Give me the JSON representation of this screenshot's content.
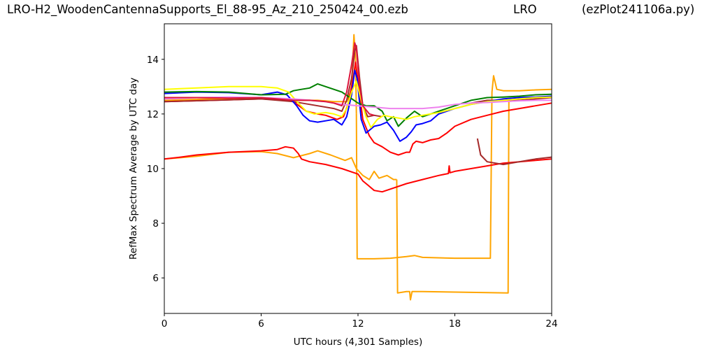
{
  "header": {
    "filename": "LRO-H2_WoodenCantennaSupports_El_88-95_Az_210_250424_00.ezb",
    "station": "LRO",
    "script": "(ezPlot241106a.py)"
  },
  "chart_data": {
    "type": "line",
    "title": "",
    "xlabel": "UTC hours  (4,301 Samples)",
    "ylabel": "RefMax Spectrum Average by UTC day",
    "xlim": [
      0,
      24
    ],
    "ylim": [
      4.7,
      15.3
    ],
    "xticks": [
      0,
      6,
      12,
      18,
      24
    ],
    "xtick_labels": [
      "0",
      "6",
      "12",
      "18",
      "24"
    ],
    "yticks": [
      6,
      8,
      10,
      12,
      14
    ],
    "ytick_labels": [
      "6",
      "8",
      "10",
      "12",
      "14"
    ],
    "grid": false,
    "legend": "none",
    "series": [
      {
        "color": "#ffa500",
        "points": [
          [
            0,
            10.35
          ],
          [
            2,
            10.45
          ],
          [
            4,
            10.6
          ],
          [
            6,
            10.62
          ],
          [
            7,
            10.55
          ],
          [
            8,
            10.4
          ],
          [
            9,
            10.55
          ],
          [
            9.5,
            10.65
          ],
          [
            10.3,
            10.5
          ],
          [
            11.2,
            10.3
          ],
          [
            11.6,
            10.4
          ],
          [
            11.9,
            10.0
          ],
          [
            12.3,
            9.75
          ],
          [
            12.7,
            9.6
          ],
          [
            13.0,
            9.9
          ],
          [
            13.3,
            9.65
          ],
          [
            13.8,
            9.75
          ],
          [
            14.2,
            9.6
          ],
          [
            14.4,
            9.6
          ]
        ]
      },
      {
        "color": "#ffa500",
        "points": [
          [
            0,
            12.5
          ],
          [
            3,
            12.55
          ],
          [
            6,
            12.55
          ],
          [
            8,
            12.5
          ],
          [
            9.5,
            12.5
          ],
          [
            10.5,
            12.45
          ],
          [
            11.3,
            12.45
          ],
          [
            11.6,
            12.9
          ],
          [
            11.75,
            14.9
          ],
          [
            11.85,
            14.0
          ],
          [
            11.9,
            12.0
          ]
        ]
      },
      {
        "color": "#ffa500",
        "points": [
          [
            11.9,
            12.0
          ],
          [
            11.95,
            6.7
          ],
          [
            13,
            6.7
          ],
          [
            14,
            6.72
          ],
          [
            15,
            6.78
          ],
          [
            15.5,
            6.82
          ],
          [
            16,
            6.75
          ],
          [
            18,
            6.72
          ],
          [
            20.2,
            6.72
          ],
          [
            20.3,
            12.8
          ],
          [
            20.4,
            13.4
          ],
          [
            20.6,
            12.9
          ],
          [
            21,
            12.85
          ],
          [
            22,
            12.85
          ],
          [
            23,
            12.88
          ],
          [
            24,
            12.9
          ]
        ]
      },
      {
        "color": "#ffa500",
        "points": [
          [
            14.4,
            9.6
          ],
          [
            14.45,
            5.45
          ],
          [
            15,
            5.5
          ],
          [
            15.2,
            5.5
          ],
          [
            15.25,
            5.2
          ],
          [
            15.35,
            5.5
          ],
          [
            16,
            5.5
          ],
          [
            18,
            5.48
          ],
          [
            20,
            5.46
          ],
          [
            21.3,
            5.45
          ],
          [
            21.35,
            12.5
          ],
          [
            21.5,
            12.45
          ]
        ]
      },
      {
        "color": "#ff0000",
        "points": [
          [
            0,
            10.35
          ],
          [
            1,
            10.42
          ],
          [
            2,
            10.5
          ],
          [
            4,
            10.6
          ],
          [
            6,
            10.65
          ],
          [
            7,
            10.7
          ],
          [
            7.5,
            10.8
          ],
          [
            8,
            10.75
          ],
          [
            8.3,
            10.55
          ],
          [
            8.5,
            10.35
          ],
          [
            9,
            10.25
          ],
          [
            10,
            10.15
          ],
          [
            11,
            10.0
          ],
          [
            12,
            9.8
          ],
          [
            12.3,
            9.55
          ],
          [
            12.6,
            9.4
          ],
          [
            13,
            9.2
          ],
          [
            13.5,
            9.15
          ],
          [
            14,
            9.25
          ],
          [
            15,
            9.45
          ],
          [
            16,
            9.6
          ],
          [
            17,
            9.75
          ],
          [
            17.6,
            9.82
          ],
          [
            17.65,
            10.1
          ],
          [
            17.7,
            9.85
          ],
          [
            18,
            9.9
          ],
          [
            19,
            10.0
          ],
          [
            20,
            10.1
          ],
          [
            21,
            10.2
          ],
          [
            22,
            10.25
          ],
          [
            23,
            10.3
          ],
          [
            24,
            10.35
          ]
        ]
      },
      {
        "color": "#ff0000",
        "points": [
          [
            0,
            12.45
          ],
          [
            3,
            12.5
          ],
          [
            6,
            12.55
          ],
          [
            7,
            12.55
          ],
          [
            8,
            12.45
          ],
          [
            8.8,
            12.1
          ],
          [
            9.5,
            12.0
          ],
          [
            10,
            11.95
          ],
          [
            10.7,
            11.8
          ],
          [
            11.1,
            11.9
          ],
          [
            11.4,
            12.4
          ],
          [
            11.7,
            13.3
          ],
          [
            11.85,
            13.9
          ],
          [
            12,
            13.2
          ],
          [
            12.3,
            11.8
          ],
          [
            12.7,
            11.2
          ],
          [
            13,
            10.95
          ],
          [
            13.5,
            10.8
          ],
          [
            14,
            10.6
          ],
          [
            14.5,
            10.5
          ],
          [
            15,
            10.6
          ],
          [
            15.2,
            10.6
          ],
          [
            15.4,
            10.9
          ],
          [
            15.6,
            11.0
          ],
          [
            16,
            10.95
          ],
          [
            16.5,
            11.05
          ],
          [
            17,
            11.1
          ],
          [
            17.5,
            11.3
          ],
          [
            18,
            11.55
          ],
          [
            19,
            11.8
          ],
          [
            20,
            11.95
          ],
          [
            21,
            12.1
          ],
          [
            22,
            12.2
          ],
          [
            23,
            12.3
          ],
          [
            24,
            12.4
          ]
        ]
      },
      {
        "color": "#a52a2a",
        "points": [
          [
            0,
            12.45
          ],
          [
            3,
            12.5
          ],
          [
            6,
            12.55
          ],
          [
            8,
            12.45
          ],
          [
            9.5,
            12.3
          ],
          [
            10.5,
            12.2
          ],
          [
            11,
            12.1
          ],
          [
            11.3,
            12.5
          ],
          [
            11.6,
            13.3
          ],
          [
            11.8,
            14.3
          ],
          [
            11.9,
            14.5
          ],
          [
            12.1,
            13.3
          ],
          [
            12.3,
            12.3
          ],
          [
            12.6,
            11.9
          ],
          [
            13,
            11.95
          ],
          [
            13.5,
            11.9
          ]
        ]
      },
      {
        "color": "#a52a2a",
        "points": [
          [
            19.4,
            11.1
          ],
          [
            19.6,
            10.5
          ],
          [
            20,
            10.25
          ],
          [
            21,
            10.15
          ],
          [
            22,
            10.25
          ],
          [
            23,
            10.35
          ],
          [
            24,
            10.42
          ]
        ]
      },
      {
        "color": "#a52a2a",
        "points": [
          [
            19,
            12.4
          ],
          [
            20,
            12.5
          ],
          [
            21,
            12.5
          ],
          [
            22,
            12.5
          ],
          [
            23,
            12.55
          ],
          [
            24,
            12.6
          ]
        ]
      },
      {
        "color": "#0000ff",
        "points": [
          [
            0,
            12.75
          ],
          [
            2,
            12.8
          ],
          [
            4,
            12.78
          ],
          [
            6,
            12.7
          ],
          [
            7,
            12.8
          ],
          [
            7.6,
            12.7
          ],
          [
            8.2,
            12.3
          ],
          [
            8.6,
            11.95
          ],
          [
            9,
            11.75
          ],
          [
            9.5,
            11.7
          ],
          [
            10,
            11.75
          ],
          [
            10.5,
            11.8
          ],
          [
            11,
            11.6
          ],
          [
            11.3,
            11.9
          ],
          [
            11.6,
            12.7
          ],
          [
            11.8,
            13.6
          ],
          [
            11.95,
            13.3
          ],
          [
            12.2,
            11.8
          ],
          [
            12.5,
            11.3
          ],
          [
            13,
            11.55
          ],
          [
            13.4,
            11.6
          ],
          [
            13.8,
            11.7
          ],
          [
            14.2,
            11.4
          ],
          [
            14.6,
            11.0
          ],
          [
            15,
            11.15
          ],
          [
            15.3,
            11.35
          ],
          [
            15.6,
            11.6
          ],
          [
            16,
            11.65
          ],
          [
            16.5,
            11.75
          ],
          [
            17,
            12.0
          ],
          [
            18,
            12.2
          ],
          [
            19,
            12.35
          ],
          [
            20,
            12.45
          ],
          [
            21,
            12.55
          ],
          [
            22,
            12.6
          ],
          [
            23,
            12.62
          ],
          [
            24,
            12.65
          ]
        ]
      },
      {
        "color": "#008000",
        "points": [
          [
            0,
            12.8
          ],
          [
            2,
            12.82
          ],
          [
            4,
            12.8
          ],
          [
            6,
            12.7
          ],
          [
            7.5,
            12.72
          ],
          [
            8,
            12.85
          ],
          [
            8.5,
            12.9
          ],
          [
            9,
            12.95
          ],
          [
            9.5,
            13.1
          ],
          [
            10,
            13.0
          ],
          [
            10.5,
            12.9
          ],
          [
            11,
            12.8
          ],
          [
            11.5,
            12.6
          ],
          [
            12,
            12.4
          ],
          [
            12.5,
            12.3
          ],
          [
            13,
            12.3
          ],
          [
            13.5,
            12.1
          ],
          [
            13.8,
            11.75
          ],
          [
            14.2,
            11.9
          ],
          [
            14.5,
            11.55
          ],
          [
            15,
            11.85
          ],
          [
            15.5,
            12.1
          ],
          [
            16,
            11.9
          ],
          [
            16.5,
            12.0
          ],
          [
            17,
            12.1
          ],
          [
            18,
            12.3
          ],
          [
            19,
            12.5
          ],
          [
            20,
            12.6
          ],
          [
            21,
            12.62
          ],
          [
            22,
            12.65
          ],
          [
            23,
            12.7
          ],
          [
            24,
            12.72
          ]
        ]
      },
      {
        "color": "#ffff00",
        "points": [
          [
            0,
            12.9
          ],
          [
            2,
            12.95
          ],
          [
            4,
            13.0
          ],
          [
            6,
            13.0
          ],
          [
            7,
            12.95
          ],
          [
            7.7,
            12.8
          ],
          [
            8.3,
            12.4
          ],
          [
            8.8,
            12.1
          ],
          [
            9.3,
            12.0
          ],
          [
            10,
            12.05
          ],
          [
            10.5,
            12.0
          ],
          [
            11,
            11.9
          ],
          [
            11.3,
            12.2
          ],
          [
            11.6,
            12.8
          ],
          [
            11.9,
            13.2
          ],
          [
            12.2,
            12.5
          ],
          [
            12.5,
            11.9
          ],
          [
            12.8,
            11.5
          ],
          [
            13.2,
            11.8
          ],
          [
            13.6,
            11.95
          ],
          [
            14,
            11.9
          ],
          [
            14.5,
            11.85
          ],
          [
            15,
            11.8
          ],
          [
            15.5,
            11.9
          ],
          [
            16,
            11.95
          ],
          [
            17,
            12.05
          ],
          [
            18,
            12.2
          ],
          [
            19,
            12.35
          ],
          [
            20,
            12.45
          ],
          [
            21,
            12.5
          ],
          [
            22,
            12.55
          ],
          [
            23,
            12.6
          ],
          [
            24,
            12.62
          ]
        ]
      },
      {
        "color": "#ee82ee",
        "points": [
          [
            0,
            12.55
          ],
          [
            2,
            12.6
          ],
          [
            4,
            12.62
          ],
          [
            6,
            12.6
          ],
          [
            8,
            12.55
          ],
          [
            10,
            12.45
          ],
          [
            11,
            12.35
          ],
          [
            12,
            12.3
          ],
          [
            13,
            12.25
          ],
          [
            14,
            12.2
          ],
          [
            15,
            12.2
          ],
          [
            16,
            12.2
          ],
          [
            17,
            12.25
          ],
          [
            18,
            12.35
          ],
          [
            19,
            12.4
          ],
          [
            20,
            12.42
          ],
          [
            21,
            12.45
          ],
          [
            22,
            12.48
          ],
          [
            23,
            12.5
          ],
          [
            24,
            12.5
          ]
        ]
      },
      {
        "color": "#dc143c",
        "points": [
          [
            0,
            12.6
          ],
          [
            2,
            12.6
          ],
          [
            4,
            12.58
          ],
          [
            6,
            12.6
          ],
          [
            7,
            12.55
          ],
          [
            8,
            12.5
          ],
          [
            9,
            12.5
          ],
          [
            10,
            12.45
          ],
          [
            10.5,
            12.4
          ],
          [
            11,
            12.3
          ],
          [
            11.3,
            12.8
          ],
          [
            11.6,
            13.8
          ],
          [
            11.8,
            14.6
          ],
          [
            11.9,
            14.4
          ],
          [
            12.1,
            13.0
          ],
          [
            12.3,
            12.3
          ],
          [
            12.7,
            12.0
          ],
          [
            13,
            11.95
          ]
        ]
      }
    ]
  }
}
